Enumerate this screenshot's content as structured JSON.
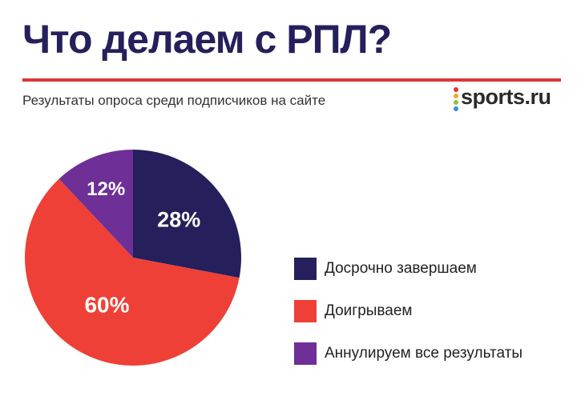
{
  "header": {
    "title": "Что делаем с РПЛ?",
    "subtitle": "Результаты опроса среди подписчиков на сайте"
  },
  "brand": {
    "logo_text": "sports.ru",
    "dot_colors": [
      "#e2323a",
      "#f5a623",
      "#8cc63f",
      "#3a8fd8"
    ]
  },
  "colors": {
    "title": "#25205c",
    "rule": "#e2323a"
  },
  "chart_data": {
    "type": "pie",
    "title": "Что делаем с РПЛ?",
    "subtitle": "Результаты опроса среди подписчиков на сайте",
    "slices": [
      {
        "label": "Досрочно завершаем",
        "value": 28,
        "display": "28%",
        "color": "#25205c"
      },
      {
        "label": "Доигрываем",
        "value": 60,
        "display": "60%",
        "color": "#ee4037"
      },
      {
        "label": "Аннулируем все результаты",
        "value": 12,
        "display": "12%",
        "color": "#6e2f96"
      }
    ],
    "legend_position": "right"
  }
}
